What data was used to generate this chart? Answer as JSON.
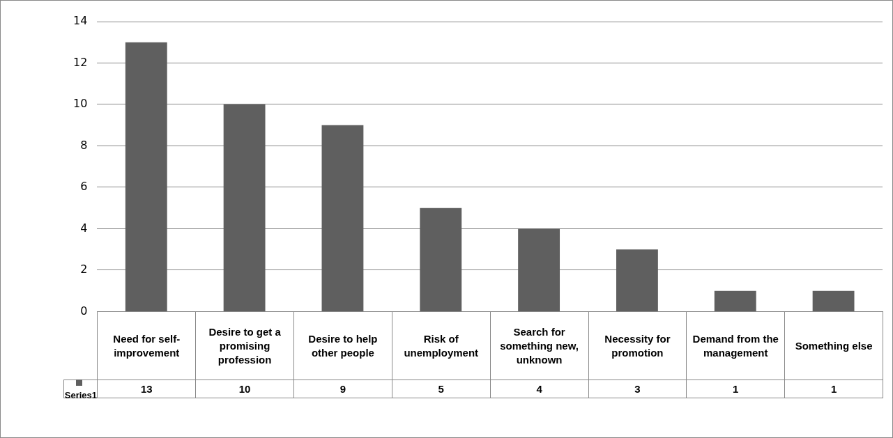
{
  "chart_data": {
    "type": "bar",
    "categories": [
      "Need for self-improvement",
      "Desire to get a promising profession",
      "Desire to help other people",
      "Risk of unemployment",
      "Search for something new, unknown",
      "Necessity for promotion",
      "Demand from the management",
      "Something else"
    ],
    "series": [
      {
        "name": "Series1",
        "color": "#5f5f5f",
        "values": [
          13,
          10,
          9,
          5,
          4,
          3,
          1,
          1
        ]
      }
    ],
    "ylim": [
      0,
      14
    ],
    "yticks": [
      0,
      2,
      4,
      6,
      8,
      10,
      12,
      14
    ],
    "grid": "y",
    "legend": "bottom",
    "data_labels": true
  }
}
